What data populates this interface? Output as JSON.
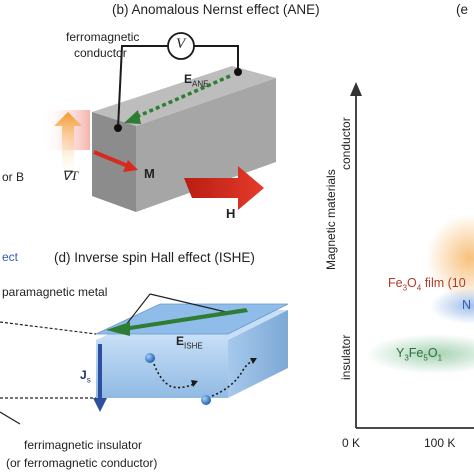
{
  "panel_b": {
    "label": "(b) Anomalous Nernst effect (ANE)",
    "ferro_line1": "ferromagnetic",
    "ferro_line2": "conductor",
    "voltmeter": "V",
    "field_symbol": "E",
    "field_sub": "ANE",
    "grad_t": "∇T",
    "magnetization": "M",
    "h_field": "H"
  },
  "left_cut": {
    "or_b": "or B",
    "effect_fragment": "ect"
  },
  "panel_d": {
    "label": "(d) Inverse spin Hall effect (ISHE)",
    "metal": "paramagnetic metal",
    "field_symbol": "E",
    "field_sub": "ISHE",
    "current_symbol": "J",
    "current_sub": "s",
    "insulator_line1": "ferrimagnetic insulator",
    "insulator_line2": "(or ferromagnetic conductor)"
  },
  "panel_e": {
    "label": "(e",
    "y_axis": "Magnetic materials",
    "y_top": "conductor",
    "y_bottom": "insulator",
    "x_ticks": [
      "0 K",
      "100 K"
    ],
    "materials": {
      "fe3o4_prefix": "Fe",
      "fe3o4_sub1": "3",
      "fe3o4_mid": "O",
      "fe3o4_sub2": "4",
      "fe3o4_suffix": " film (10",
      "n_fragment": "N",
      "yig_prefix": "Y",
      "yig_sub1": "3",
      "yig_mid": "Fe",
      "yig_sub2": "5",
      "yig_end": "O",
      "yig_sub3": "1"
    }
  },
  "colors": {
    "arrow_red": "#d7291c",
    "arrow_orange": "#f3a43a",
    "field_green": "#2e7d32",
    "spin_blue": "#2d66b0",
    "block_gray": "#9e9e9e",
    "slab_blue": "#9cc3ea"
  }
}
